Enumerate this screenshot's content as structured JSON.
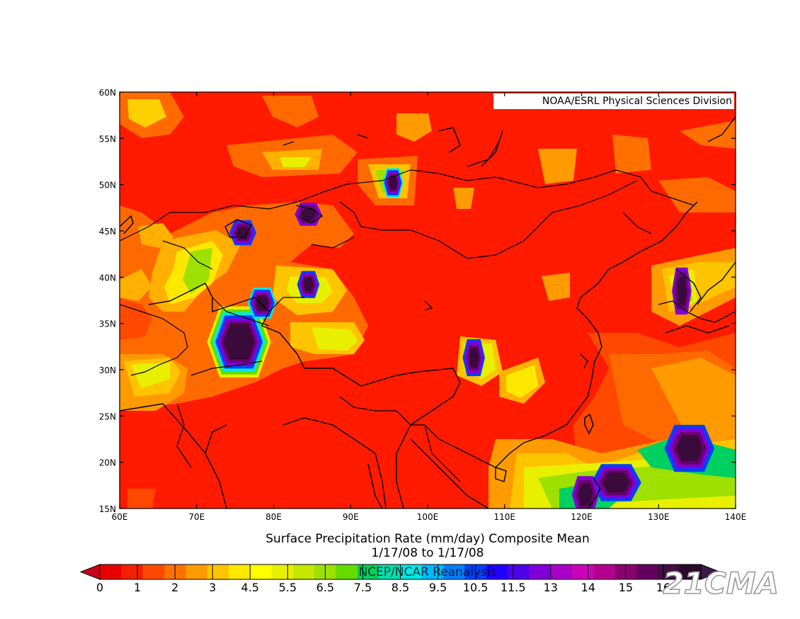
{
  "map": {
    "credit": "NOAA/ESRL Physical Sciences Division",
    "title_line1": "Surface Precipitation Rate (mm/day) Composite Mean",
    "title_line2": "1/17/08   to 1/17/08",
    "source": "NCEP/NCAR Reanalysis",
    "watermark": "21CMA",
    "lon_labels": [
      "60E",
      "70E",
      "80E",
      "90E",
      "100E",
      "110E",
      "120E",
      "130E",
      "140E"
    ],
    "lat_labels": [
      "15N",
      "20N",
      "25N",
      "30N",
      "35N",
      "40N",
      "45N",
      "50N",
      "55N",
      "60N"
    ],
    "extent": {
      "lon": [
        60,
        140
      ],
      "lat": [
        15,
        60
      ]
    }
  },
  "colorbar": {
    "labels": [
      "0",
      "1",
      "2",
      "3",
      "4.5",
      "5.5",
      "6.5",
      "7.5",
      "8.5",
      "9.5",
      "10.5",
      "11.5",
      "13",
      "14",
      "15",
      "16"
    ],
    "colors": [
      "#e80000",
      "#f42000",
      "#ff4800",
      "#ff7000",
      "#ff9a00",
      "#ffc400",
      "#ffe800",
      "#ffff00",
      "#e8f000",
      "#c4e600",
      "#9ee000",
      "#64dc00",
      "#00d060",
      "#00e0b0",
      "#00e8e8",
      "#00b8ff",
      "#0080ff",
      "#0040ff",
      "#2000ff",
      "#5000e8",
      "#8000d8",
      "#a800c8",
      "#cc00b8",
      "#b4008c",
      "#8c0070",
      "#640060",
      "#401040",
      "#2a0a2a"
    ]
  },
  "blobs": [
    {
      "lon": 75.5,
      "lat": 33.0,
      "ry": 3.2,
      "rx": 6.0,
      "level": 7
    },
    {
      "lon": 78.5,
      "lat": 37.2,
      "ry": 1.2,
      "rx": 2.2,
      "level": 5
    },
    {
      "lon": 76.0,
      "lat": 44.8,
      "ry": 0.9,
      "rx": 2.0,
      "level": 4
    },
    {
      "lon": 84.5,
      "lat": 46.8,
      "ry": 0.8,
      "rx": 2.0,
      "level": 3
    },
    {
      "lon": 95.5,
      "lat": 50.2,
      "ry": 1.1,
      "rx": 1.3,
      "level": 5
    },
    {
      "lon": 84.5,
      "lat": 39.2,
      "ry": 1.0,
      "rx": 1.5,
      "level": 4
    },
    {
      "lon": 106.0,
      "lat": 31.3,
      "ry": 1.5,
      "rx": 1.5,
      "level": 4
    },
    {
      "lon": 133.0,
      "lat": 38.5,
      "ry": 2.0,
      "rx": 1.2,
      "level": 3
    },
    {
      "lon": 134.0,
      "lat": 21.5,
      "ry": 2.0,
      "rx": 4.5,
      "level": 4
    },
    {
      "lon": 124.5,
      "lat": 17.8,
      "ry": 1.5,
      "rx": 4.5,
      "level": 4
    },
    {
      "lon": 120.5,
      "lat": 16.5,
      "ry": 1.5,
      "rx": 2.0,
      "level": 3
    }
  ]
}
